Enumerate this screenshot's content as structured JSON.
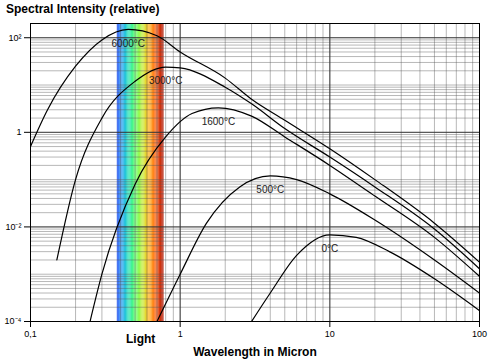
{
  "chart_data": {
    "type": "line",
    "title": "Spectral Intensity (relative)",
    "x_label": "Wavelength in Micron",
    "log": true,
    "grid": true,
    "xlim": [
      0.1,
      100
    ],
    "xticks": [
      {
        "value": 0.1,
        "label": "0,1"
      },
      1,
      10,
      100
    ],
    "ylim": [
      0.0001,
      200
    ],
    "yticks": [
      {
        "value": 0.0001,
        "label": "10⁻⁴"
      },
      {
        "value": 0.01,
        "label": "10⁻²"
      },
      1,
      {
        "value": 100,
        "label": "10²"
      }
    ],
    "band": {
      "x": [
        0.38,
        0.78
      ],
      "label": "Light"
    },
    "series": [
      {
        "name": "6000°C",
        "color": "#000000",
        "x": [
          0.1,
          0.13,
          0.2,
          0.3,
          0.45,
          0.7,
          1,
          2,
          3,
          5,
          10,
          20,
          50,
          100
        ],
        "values": [
          0.5,
          3,
          25,
          90,
          150,
          110,
          50,
          14,
          5,
          1.8,
          0.45,
          0.1,
          0.012,
          0.0018
        ]
      },
      {
        "name": "3000°C",
        "color": "#000000",
        "x": [
          0.15,
          0.2,
          0.3,
          0.5,
          0.8,
          1,
          2,
          3,
          5,
          10,
          20,
          50,
          100
        ],
        "values": [
          0.002,
          0.1,
          2,
          12,
          24,
          23,
          9,
          4,
          1.2,
          0.3,
          0.07,
          0.009,
          0.0013
        ]
      },
      {
        "name": "1600°C",
        "color": "#000000",
        "x": [
          0.25,
          0.3,
          0.5,
          0.8,
          1.2,
          1.8,
          3,
          5,
          10,
          20,
          50,
          100
        ],
        "values": [
          0.0001,
          0.001,
          0.08,
          0.8,
          2.5,
          3.3,
          2.2,
          0.8,
          0.2,
          0.045,
          0.006,
          0.0009
        ]
      },
      {
        "name": "500°C",
        "color": "#000000",
        "x": [
          0.7,
          1,
          1.5,
          2.5,
          4,
          6,
          10,
          20,
          50,
          100
        ],
        "values": [
          0.0001,
          0.001,
          0.012,
          0.07,
          0.12,
          0.1,
          0.05,
          0.014,
          0.002,
          0.0004
        ]
      },
      {
        "name": "0°C",
        "color": "#000000",
        "x": [
          3,
          4,
          6,
          10,
          15,
          25,
          50,
          100
        ],
        "values": [
          0.0001,
          0.0004,
          0.0025,
          0.0068,
          0.006,
          0.003,
          0.0008,
          0.00017
        ]
      }
    ]
  }
}
